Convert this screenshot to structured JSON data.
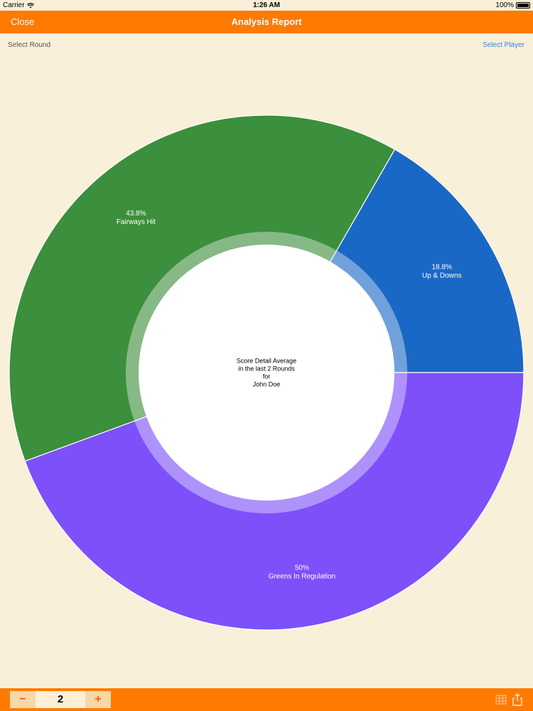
{
  "status": {
    "carrier": "Carrier",
    "time": "1:26 AM",
    "battery": "100%"
  },
  "nav": {
    "close_label": "Close",
    "title": "Analysis Report"
  },
  "subbar": {
    "left_label": "Select Round",
    "right_label": "Select Player"
  },
  "stepper": {
    "minus": "−",
    "value": "2",
    "plus": "+"
  },
  "icons": {
    "grid": "grid-icon",
    "share": "share-icon"
  },
  "colors": {
    "nav": "#ff7a00",
    "background": "#f9f0d9",
    "link": "#3a7fe0"
  },
  "chart_data": {
    "type": "pie",
    "style": "donut",
    "center_text": [
      "Score Detail Average",
      "in the last 2 Rounds",
      "for",
      "John Doe"
    ],
    "slices": [
      {
        "label": "Up & Downs",
        "percent_label": "18.8%",
        "value": 18.8,
        "color": "#1a68c5"
      },
      {
        "label": "Fairways Hit",
        "percent_label": "43.8%",
        "value": 43.8,
        "color": "#3c8f3c"
      },
      {
        "label": "Greens In Regulation",
        "percent_label": "50%",
        "value": 50,
        "color": "#7d50fa"
      }
    ]
  }
}
